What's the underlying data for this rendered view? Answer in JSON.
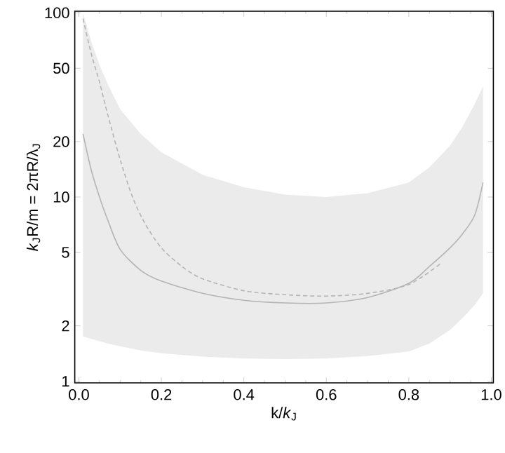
{
  "chart_data": {
    "type": "line",
    "xlabel": "k/*k*$_{J}$",
    "ylabel": "*k*$_{J}$R/m = 2πR/λ$_{J}$",
    "xlim": [
      -0.01,
      1.005
    ],
    "ylim": [
      0.98,
      102
    ],
    "log": "y",
    "xticks": [
      {
        "value": 0,
        "label": "0.0"
      },
      0.2,
      0.4,
      0.6,
      0.8,
      {
        "value": 1,
        "label": "1.0"
      }
    ],
    "yticks": [
      1,
      2,
      5,
      10,
      20,
      50,
      100
    ],
    "series": [
      {
        "line_style": "solid",
        "color": "#b4b4b4",
        "x": [
          0.01,
          0.03,
          0.05,
          0.07,
          0.1,
          0.15,
          0.2,
          0.3,
          0.4,
          0.5,
          0.6,
          0.7,
          0.8,
          0.85,
          0.9,
          0.93,
          0.96,
          0.98
        ],
        "values": [
          22,
          14,
          10,
          7.5,
          5.2,
          4.0,
          3.5,
          3.0,
          2.75,
          2.66,
          2.66,
          2.85,
          3.4,
          4.2,
          5.3,
          6.3,
          8,
          12
        ],
        "upper": [
          100,
          70,
          52,
          41,
          30,
          22,
          17.5,
          13.2,
          11.3,
          10.3,
          10,
          10.5,
          12,
          14.5,
          19,
          24,
          32,
          40
        ],
        "lower": [
          1.75,
          1.7,
          1.65,
          1.6,
          1.55,
          1.47,
          1.42,
          1.36,
          1.33,
          1.32,
          1.33,
          1.37,
          1.45,
          1.6,
          1.9,
          2.2,
          2.6,
          3
        ]
      },
      {
        "line_style": "dashed",
        "color": "#b4b4b4",
        "x": [
          0.01,
          0.03,
          0.05,
          0.07,
          0.1,
          0.13,
          0.16,
          0.2,
          0.25,
          0.3,
          0.4,
          0.5,
          0.6,
          0.7,
          0.8,
          0.88
        ],
        "values": [
          93,
          60,
          42,
          28,
          16,
          10,
          7.2,
          5.3,
          4.2,
          3.6,
          3.1,
          2.95,
          2.9,
          3.0,
          3.35,
          4.4
        ]
      }
    ]
  }
}
